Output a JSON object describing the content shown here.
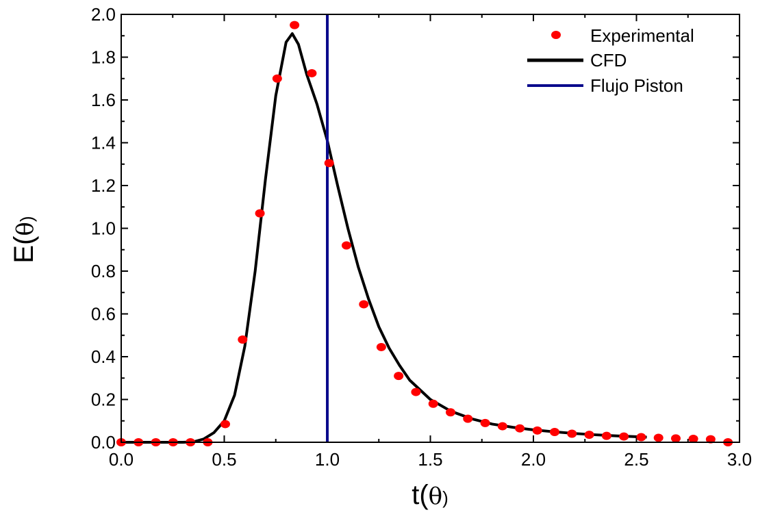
{
  "chart_data": {
    "type": "scatter",
    "xlim": [
      0.0,
      3.0
    ],
    "ylim": [
      0.0,
      2.0
    ],
    "xlabel": "t(θ)",
    "ylabel": "E(θ)",
    "grid": false,
    "legend_position": "top-right",
    "x_ticks": [
      0.0,
      0.5,
      1.0,
      1.5,
      2.0,
      2.5,
      3.0
    ],
    "x_tick_labels": [
      "0.0",
      "0.5",
      "1.0",
      "1.5",
      "2.0",
      "2.5",
      "3.0"
    ],
    "y_ticks": [
      0.0,
      0.2,
      0.4,
      0.6,
      0.8,
      1.0,
      1.2,
      1.4,
      1.6,
      1.8,
      2.0
    ],
    "y_tick_labels": [
      "0.0",
      "0.2",
      "0.4",
      "0.6",
      "0.8",
      "1.0",
      "1.2",
      "1.4",
      "1.6",
      "1.8",
      "2.0"
    ],
    "series": [
      {
        "name": "Experimental",
        "type": "scatter",
        "color": "#ff0000",
        "x": [
          0.0,
          0.084,
          0.168,
          0.252,
          0.336,
          0.42,
          0.505,
          0.589,
          0.673,
          0.757,
          0.841,
          0.925,
          1.009,
          1.093,
          1.177,
          1.262,
          1.346,
          1.43,
          1.514,
          1.598,
          1.682,
          1.766,
          1.85,
          1.934,
          2.019,
          2.103,
          2.187,
          2.271,
          2.355,
          2.439,
          2.523,
          2.607,
          2.691,
          2.776,
          2.86,
          2.944
        ],
        "y": [
          0.0,
          0.0,
          0.0,
          0.0,
          0.0,
          0.0,
          0.085,
          0.48,
          1.07,
          1.7,
          1.95,
          1.725,
          1.305,
          0.92,
          0.645,
          0.445,
          0.31,
          0.235,
          0.18,
          0.14,
          0.11,
          0.09,
          0.075,
          0.065,
          0.055,
          0.048,
          0.04,
          0.035,
          0.03,
          0.027,
          0.024,
          0.021,
          0.018,
          0.016,
          0.014,
          0.0
        ]
      },
      {
        "name": "CFD",
        "type": "line",
        "color": "#000000",
        "x": [
          0.0,
          0.3,
          0.35,
          0.4,
          0.45,
          0.5,
          0.55,
          0.6,
          0.65,
          0.7,
          0.75,
          0.8,
          0.83,
          0.86,
          0.9,
          0.95,
          1.0,
          1.05,
          1.1,
          1.15,
          1.2,
          1.25,
          1.3,
          1.35,
          1.4,
          1.5,
          1.6,
          1.7,
          1.8,
          1.9,
          2.0,
          2.1,
          2.2,
          2.3,
          2.4,
          2.55
        ],
        "y": [
          0.0,
          0.0,
          0.002,
          0.015,
          0.045,
          0.1,
          0.22,
          0.45,
          0.8,
          1.23,
          1.62,
          1.87,
          1.91,
          1.86,
          1.72,
          1.58,
          1.41,
          1.2,
          1.0,
          0.82,
          0.67,
          0.54,
          0.44,
          0.36,
          0.29,
          0.2,
          0.145,
          0.11,
          0.085,
          0.07,
          0.058,
          0.049,
          0.041,
          0.035,
          0.03,
          0.024
        ]
      },
      {
        "name": "Flujo Piston",
        "type": "vline",
        "color": "#0a0a8c",
        "x_value": 1.0
      }
    ]
  }
}
